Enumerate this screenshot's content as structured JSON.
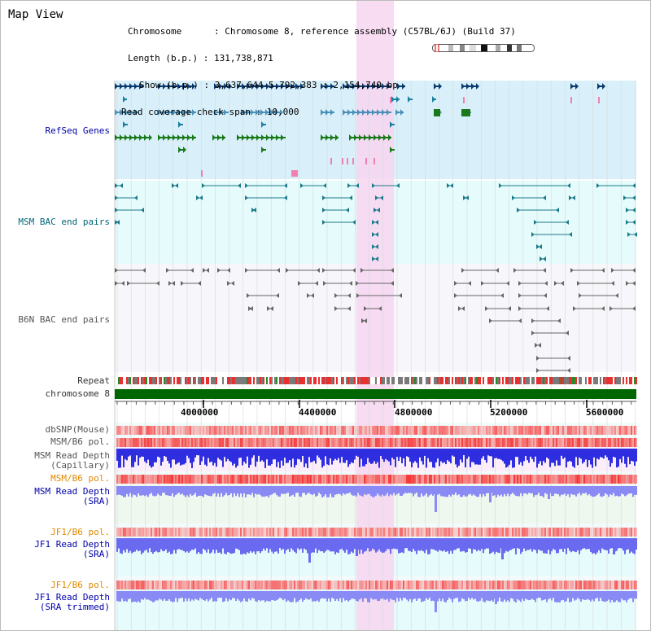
{
  "title": "Map View",
  "info": {
    "chromosome": "Chromosome      : Chromosome 8, reference assembly (C57BL/6J) (Build 37)",
    "length": "Length (b.p.) : 131,738,871",
    "show": "Show (b.p.) : 3,637,644-5,792,383 : 2,154,740 bp",
    "span": "Read coverage check span : 10,000"
  },
  "tracks": {
    "refseq": "RefSeq Genes",
    "msm_bac": "MSM BAC end pairs",
    "b6n_bac": "B6N BAC end pairs",
    "repeat": "Repeat",
    "chromosome": "chromosome 8",
    "dbsnp": "dbSNP(Mouse)",
    "msm_b6_pol_1": "MSM/B6 pol.",
    "msm_depth_cap_1": "MSM Read Depth",
    "msm_depth_cap_2": "(Capillary)",
    "msm_b6_pol_2": "MSM/B6 pol.",
    "msm_depth_sra_1": "MSM Read Depth",
    "msm_depth_sra_2": "(SRA)",
    "jf1_b6_pol_1": "JF1/B6 pol.",
    "jf1_depth_sra_1": "JF1 Read Depth",
    "jf1_depth_sra_2": "(SRA)",
    "jf1_b6_pol_2": "JF1/B6 pol.",
    "jf1_depth_trim_1": "JF1 Read Depth",
    "jf1_depth_trim_2": "(SRA trimmed)"
  },
  "axis": {
    "ticks": [
      "4000000",
      "4400000",
      "4800000",
      "5200000",
      "5600000"
    ]
  },
  "colors": {
    "refseq_bg": "#d9f0fa",
    "bac_bg": "#e6fbfb",
    "b6n_bg": "#f7f7fb",
    "highlight": "#f7d6f0",
    "chrom_bar": "#006600",
    "depth_blue": "#3a3af5",
    "snp_red": "#f05050"
  }
}
